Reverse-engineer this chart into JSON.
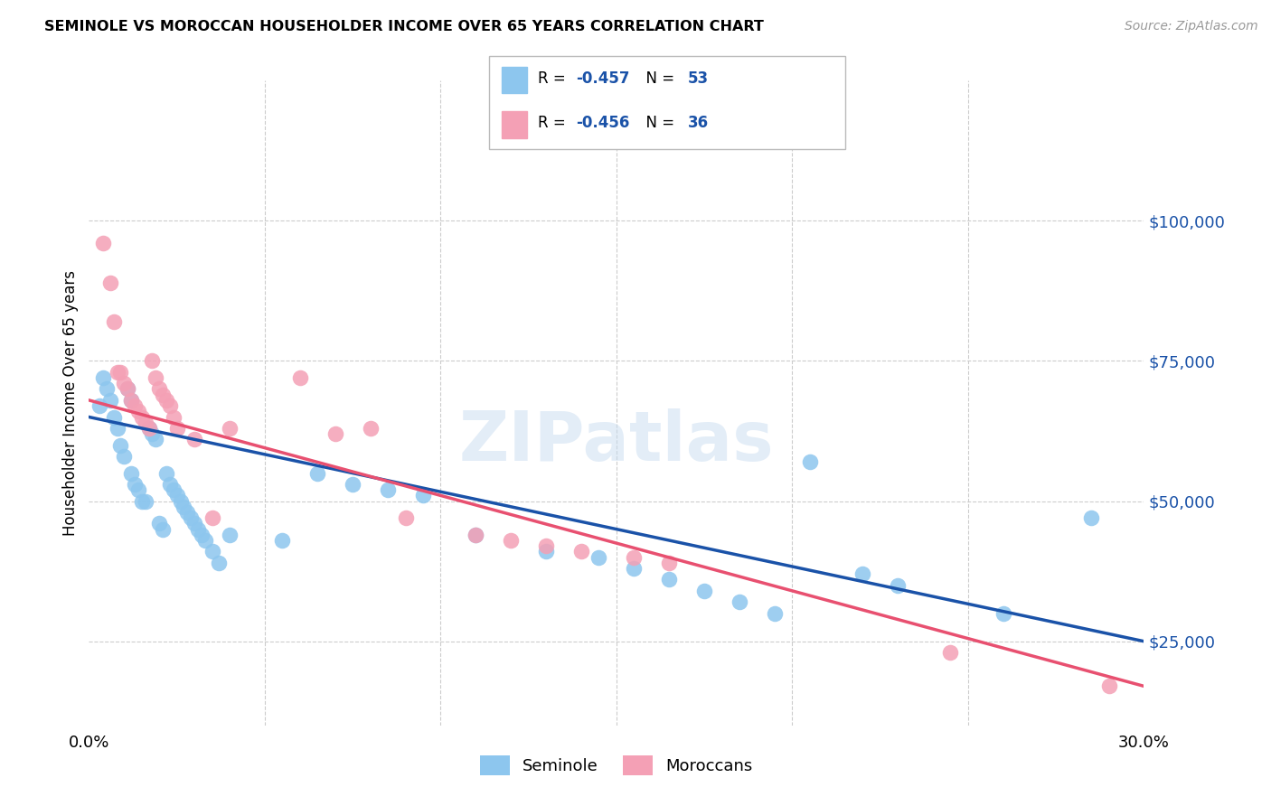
{
  "title": "SEMINOLE VS MOROCCAN HOUSEHOLDER INCOME OVER 65 YEARS CORRELATION CHART",
  "source": "Source: ZipAtlas.com",
  "ylabel": "Householder Income Over 65 years",
  "y_ticks": [
    25000,
    50000,
    75000,
    100000
  ],
  "y_tick_labels": [
    "$25,000",
    "$50,000",
    "$75,000",
    "$100,000"
  ],
  "x_range": [
    0.0,
    0.3
  ],
  "y_range": [
    10000,
    125000
  ],
  "seminole_color": "#8DC6EE",
  "moroccan_color": "#F4A0B5",
  "seminole_line_color": "#1A52A8",
  "moroccan_line_color": "#E85070",
  "watermark": "ZIPatlas",
  "seminole_R": "-0.457",
  "seminole_N": "53",
  "moroccan_R": "-0.456",
  "moroccan_N": "36",
  "seminole_x": [
    0.003,
    0.004,
    0.005,
    0.006,
    0.007,
    0.008,
    0.009,
    0.01,
    0.011,
    0.012,
    0.012,
    0.013,
    0.014,
    0.015,
    0.016,
    0.017,
    0.018,
    0.019,
    0.02,
    0.021,
    0.022,
    0.023,
    0.024,
    0.025,
    0.026,
    0.027,
    0.028,
    0.029,
    0.03,
    0.031,
    0.032,
    0.033,
    0.035,
    0.037,
    0.04,
    0.055,
    0.065,
    0.075,
    0.085,
    0.095,
    0.11,
    0.13,
    0.145,
    0.155,
    0.165,
    0.175,
    0.185,
    0.195,
    0.205,
    0.22,
    0.23,
    0.26,
    0.285
  ],
  "seminole_y": [
    67000,
    72000,
    70000,
    68000,
    65000,
    63000,
    60000,
    58000,
    70000,
    68000,
    55000,
    53000,
    52000,
    50000,
    50000,
    63000,
    62000,
    61000,
    46000,
    45000,
    55000,
    53000,
    52000,
    51000,
    50000,
    49000,
    48000,
    47000,
    46000,
    45000,
    44000,
    43000,
    41000,
    39000,
    44000,
    43000,
    55000,
    53000,
    52000,
    51000,
    44000,
    41000,
    40000,
    38000,
    36000,
    34000,
    32000,
    30000,
    57000,
    37000,
    35000,
    30000,
    47000
  ],
  "moroccan_x": [
    0.004,
    0.006,
    0.007,
    0.008,
    0.009,
    0.01,
    0.011,
    0.012,
    0.013,
    0.014,
    0.015,
    0.016,
    0.017,
    0.018,
    0.019,
    0.02,
    0.021,
    0.022,
    0.023,
    0.024,
    0.025,
    0.03,
    0.035,
    0.04,
    0.06,
    0.07,
    0.08,
    0.09,
    0.11,
    0.12,
    0.13,
    0.14,
    0.155,
    0.165,
    0.245,
    0.29
  ],
  "moroccan_y": [
    96000,
    89000,
    82000,
    73000,
    73000,
    71000,
    70000,
    68000,
    67000,
    66000,
    65000,
    64000,
    63000,
    75000,
    72000,
    70000,
    69000,
    68000,
    67000,
    65000,
    63000,
    61000,
    47000,
    63000,
    72000,
    62000,
    63000,
    47000,
    44000,
    43000,
    42000,
    41000,
    40000,
    39000,
    23000,
    17000
  ]
}
